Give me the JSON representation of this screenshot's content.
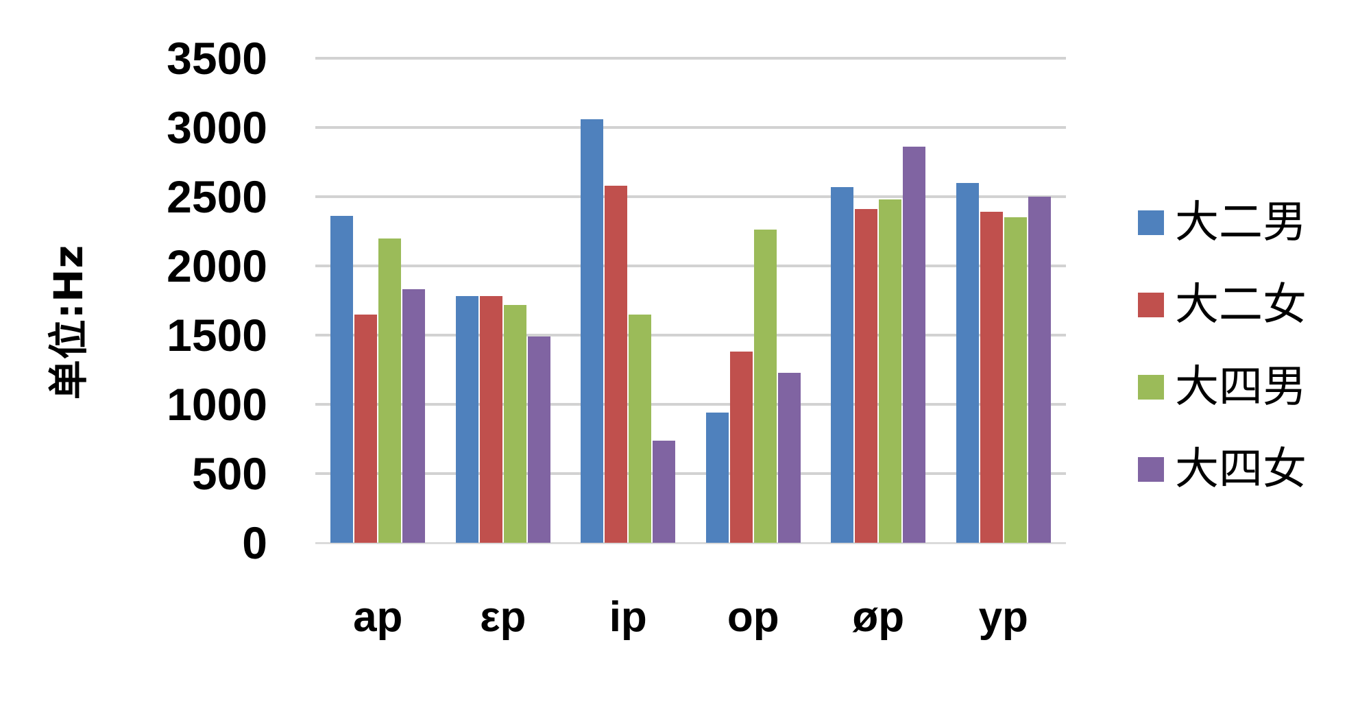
{
  "chart_data": {
    "type": "bar",
    "title": "",
    "ylabel": "单位:Hz",
    "xlabel": "",
    "categories": [
      "ap",
      "εp",
      "ip",
      "op",
      "øp",
      "yp"
    ],
    "series": [
      {
        "name": "大二男",
        "color": "#4F81BD",
        "values": [
          2360,
          1780,
          3060,
          940,
          2570,
          2600
        ]
      },
      {
        "name": "大二女",
        "color": "#C0504D",
        "values": [
          1650,
          1780,
          2580,
          1380,
          2410,
          2390
        ]
      },
      {
        "name": "大四男",
        "color": "#9BBB59",
        "values": [
          2200,
          1720,
          1650,
          2260,
          2480,
          2350
        ]
      },
      {
        "name": "大四女",
        "color": "#8064A2",
        "values": [
          1830,
          1490,
          740,
          1230,
          2860,
          2500
        ]
      }
    ],
    "ylim": [
      0,
      3500
    ],
    "ytick_step": 500,
    "yticks": [
      0,
      500,
      1000,
      1500,
      2000,
      2500,
      3000,
      3500
    ],
    "grid": "horizontal",
    "legend_position": "right",
    "colors": {
      "gridline": "#D2D2D2",
      "axis_line": "#DADADA",
      "text": "#000000",
      "background": "#FFFFFF"
    }
  }
}
